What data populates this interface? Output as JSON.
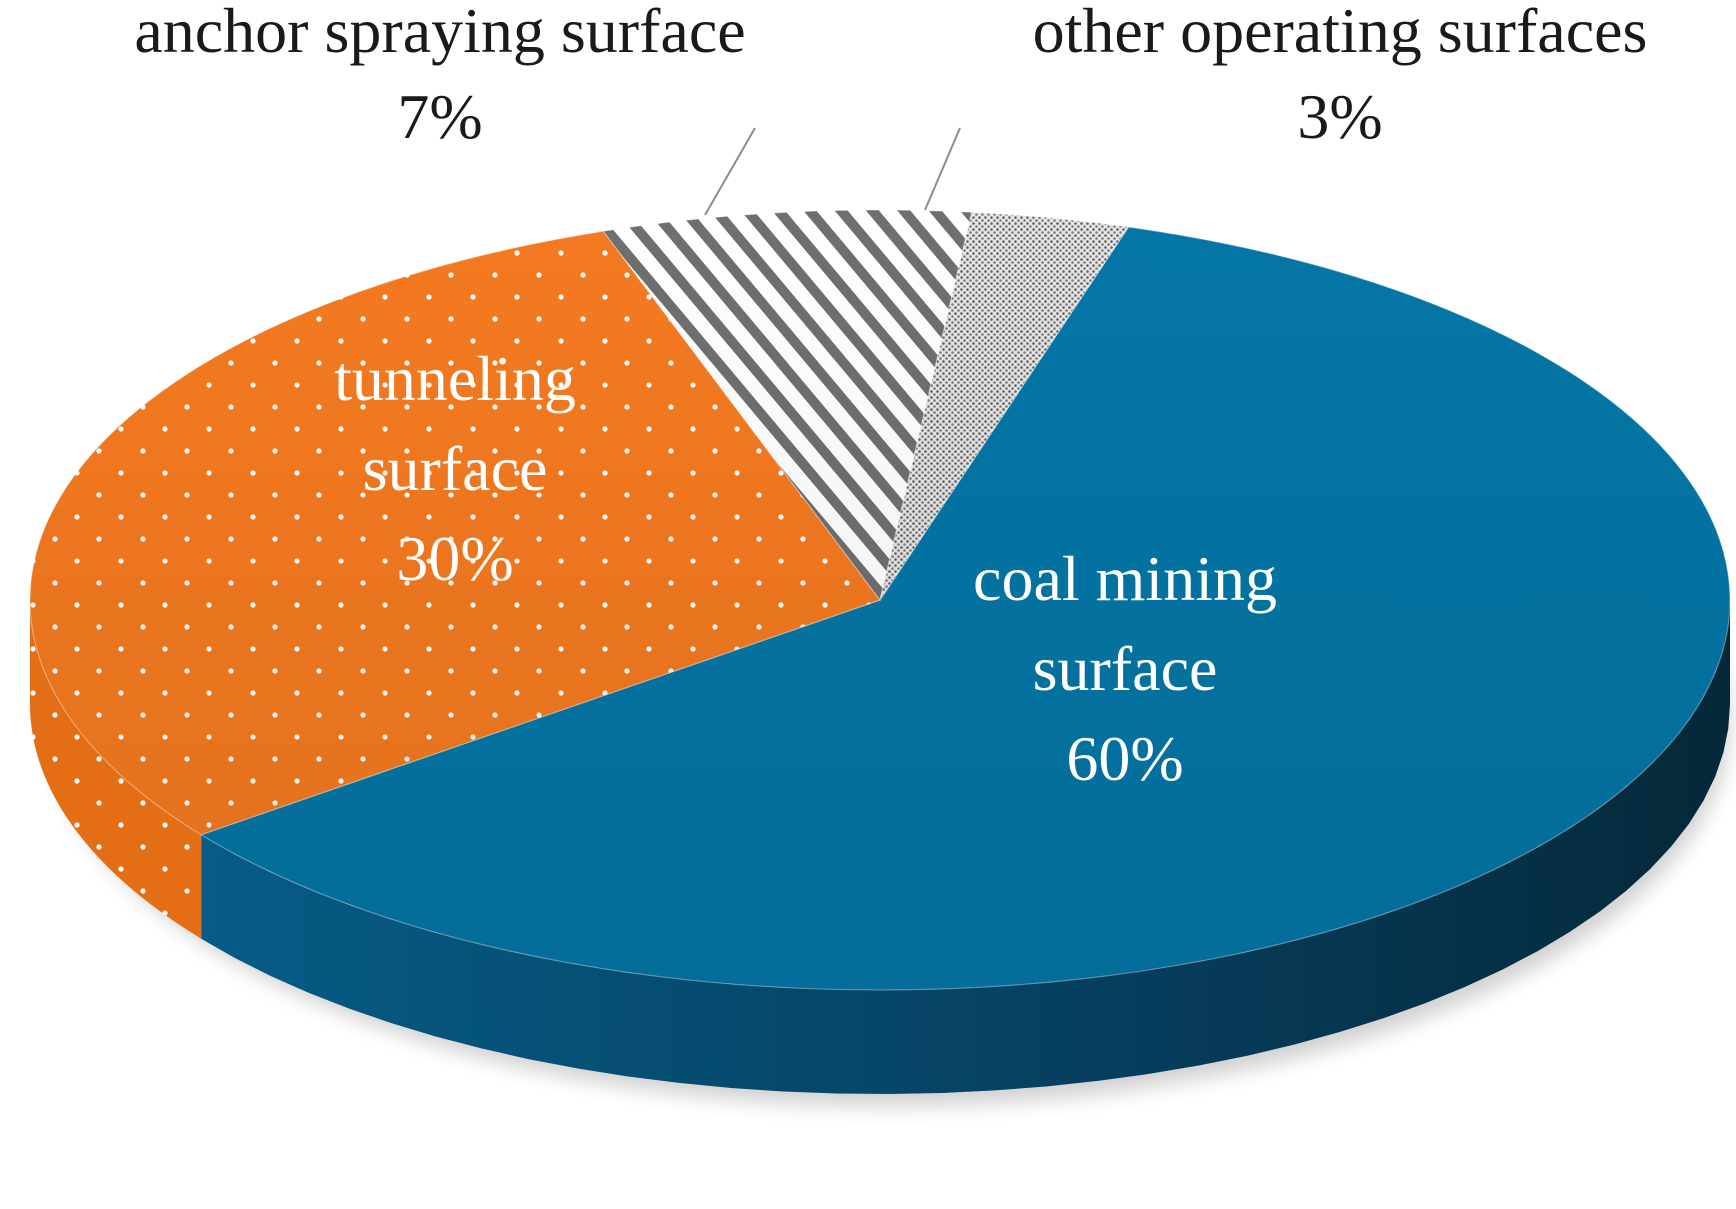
{
  "chart_data": {
    "type": "pie",
    "style": "3d-tilted",
    "title": "",
    "slices": [
      {
        "name": "coal mining surface",
        "label_lines": [
          "coal mining",
          "surface"
        ],
        "value": 60,
        "value_label": "60%",
        "color": "#0476A6",
        "pattern": "solid",
        "label_position": "inside",
        "text_color": "#ffffff"
      },
      {
        "name": "tunneling surface",
        "label_lines": [
          "tunneling",
          "surface"
        ],
        "value": 30,
        "value_label": "30%",
        "color": "#F47A20",
        "pattern": "white-dots",
        "label_position": "inside",
        "text_color": "#ffffff"
      },
      {
        "name": "anchor spraying surface",
        "label_lines": [
          "anchor spraying surface"
        ],
        "value": 7,
        "value_label": "7%",
        "color": "#7f7f7f",
        "pattern": "diagonal-stripes",
        "label_position": "outside",
        "text_color": "#1a1a1a"
      },
      {
        "name": "other operating surfaces",
        "label_lines": [
          "other operating surfaces"
        ],
        "value": 3,
        "value_label": "3%",
        "color": "#8a8a8a",
        "pattern": "fine-dots",
        "label_position": "outside",
        "text_color": "#1a1a1a"
      }
    ],
    "legend": "none"
  }
}
